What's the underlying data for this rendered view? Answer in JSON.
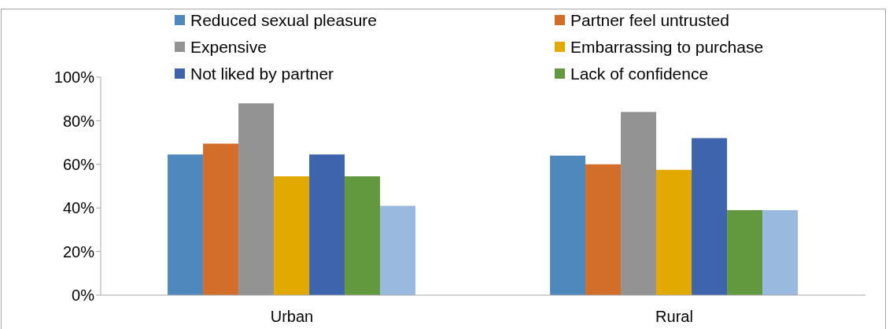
{
  "chart_data": {
    "type": "bar",
    "categories": [
      "Urban",
      "Rural"
    ],
    "series": [
      {
        "name": "Reduced sexual pleasure",
        "color": "#4f88bd",
        "values": [
          64.5,
          64
        ]
      },
      {
        "name": "Partner feel untrusted",
        "color": "#d26e2a",
        "values": [
          69.5,
          60
        ]
      },
      {
        "name": "Expensive",
        "color": "#939393",
        "values": [
          88,
          84
        ]
      },
      {
        "name": "Embarrassing to purchase",
        "color": "#e2a900",
        "values": [
          54.5,
          57.5
        ]
      },
      {
        "name": "Not liked by partner",
        "color": "#3d64ad",
        "values": [
          64.5,
          72
        ]
      },
      {
        "name": "Lack of confidence",
        "color": "#62993e",
        "values": [
          54.5,
          39
        ]
      },
      {
        "color": "#99b9df",
        "values": [
          41,
          39
        ]
      }
    ],
    "ylim": [
      0,
      100
    ],
    "yticks": [
      {
        "value": 0,
        "label": "0%"
      },
      {
        "value": 20,
        "label": "20%"
      },
      {
        "value": 40,
        "label": "40%"
      },
      {
        "value": 60,
        "label": "60%"
      },
      {
        "value": 80,
        "label": "80%"
      },
      {
        "value": 100,
        "label": "100%"
      }
    ],
    "grid": false,
    "legend": "top"
  }
}
